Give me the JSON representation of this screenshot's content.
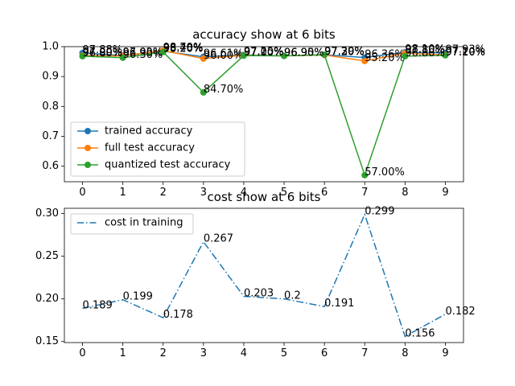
{
  "chart_data": [
    {
      "type": "line",
      "title": "accuracy show at 6 bits",
      "x": [
        0,
        1,
        2,
        3,
        4,
        5,
        6,
        7,
        8,
        9
      ],
      "xticks": [
        "0",
        "1",
        "2",
        "3",
        "4",
        "5",
        "6",
        "7",
        "8",
        "9"
      ],
      "yticks": [
        "0.6",
        "0.7",
        "0.8",
        "0.9",
        "1.0"
      ],
      "xlim": [
        -0.45,
        9.45
      ],
      "ylim": [
        0.548,
        1.0
      ],
      "grid": false,
      "legend_position": "lower-left",
      "series": [
        {
          "name": "trained accuracy",
          "color": "#1f77b4",
          "values": [
            0.9788,
            0.9702,
            0.9848,
            0.9661,
            0.9725,
            0.9695,
            0.9729,
            0.9636,
            0.981,
            0.9793
          ],
          "labels": [
            "97.88%",
            "97.02%",
            "98.48%",
            "96.61%",
            "97.25%",
            "96.95%",
            "97.29%",
            "96.36%",
            "98.10%",
            "97.93%"
          ]
        },
        {
          "name": "full test accuracy",
          "color": "#ff7f0e",
          "values": [
            0.97,
            0.969,
            0.987,
            0.96,
            0.971,
            0.969,
            0.972,
            0.952,
            0.978,
            0.972
          ],
          "labels": [
            "97.00%",
            "96.90%",
            "98.70%",
            "96.00%",
            "97.10%",
            "96.90%",
            "97.20%",
            "95.20%",
            "97.80%",
            "97.20%"
          ]
        },
        {
          "name": "quantized test accuracy",
          "color": "#2ca02c",
          "values": [
            0.968,
            0.963,
            0.982,
            0.847,
            0.97,
            0.969,
            0.973,
            0.57,
            0.968,
            0.971
          ],
          "labels": [
            "96.80%",
            "96.30%",
            "98.20%",
            "84.70%",
            "97.00%",
            "96.90%",
            "97.30%",
            "57.00%",
            "96.80%",
            "97.10%"
          ]
        }
      ]
    },
    {
      "type": "line",
      "title": "cost show at 6 bits",
      "x": [
        0,
        1,
        2,
        3,
        4,
        5,
        6,
        7,
        8,
        9
      ],
      "xticks": [
        "0",
        "1",
        "2",
        "3",
        "4",
        "5",
        "6",
        "7",
        "8",
        "9"
      ],
      "yticks": [
        "0.15",
        "0.20",
        "0.25",
        "0.30"
      ],
      "xlim": [
        -0.45,
        9.45
      ],
      "ylim": [
        0.1488,
        0.3062
      ],
      "grid": false,
      "legend_position": "upper-left",
      "series": [
        {
          "name": "cost in training",
          "color": "#1f77b4",
          "linestyle": "dash-dot",
          "values": [
            0.189,
            0.199,
            0.178,
            0.267,
            0.203,
            0.2,
            0.191,
            0.299,
            0.156,
            0.182
          ],
          "labels": [
            "0.189",
            "0.199",
            "0.178",
            "0.267",
            "0.203",
            "0.2",
            "0.191",
            "0.299",
            "0.156",
            "0.182"
          ]
        }
      ]
    }
  ]
}
